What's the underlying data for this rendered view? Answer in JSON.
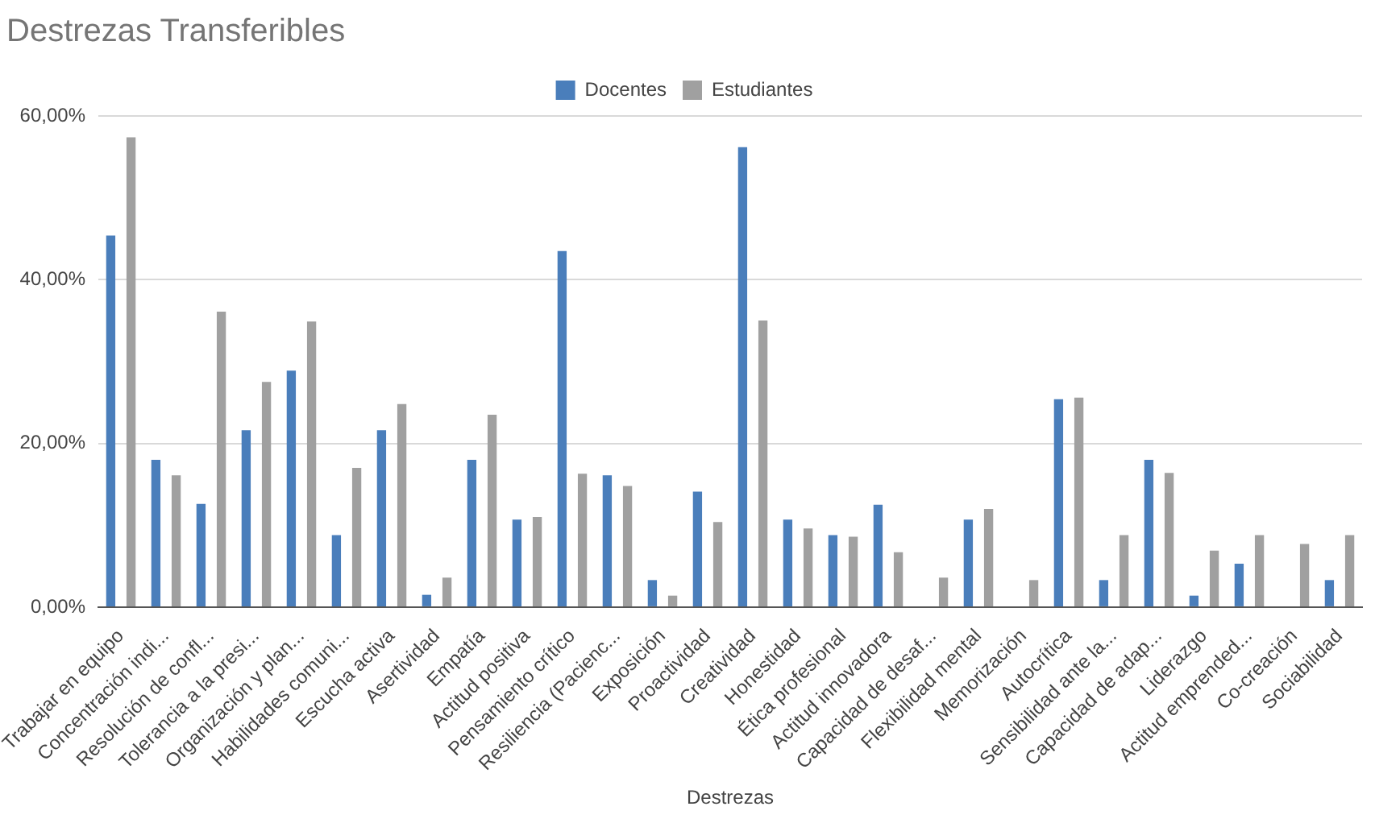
{
  "chart_data": {
    "type": "bar",
    "title": "Destrezas Transferibles",
    "xlabel": "Destrezas",
    "categories": [
      "Trabajar en equipo",
      "Concentración indi...",
      "Resolución de confl...",
      "Tolerancia a la presi...",
      "Organización y plan...",
      "Habilidades comuni...",
      "Escucha activa",
      "Asertividad",
      "Empatía",
      "Actitud positiva",
      "Pensamiento crítico",
      "Resiliencia (Pacienc...",
      "Exposición",
      "Proactividad",
      "Creatividad",
      "Honestidad",
      "Ética profesional",
      "Actitud innovadora",
      "Capacidad de desaf...",
      "Flexibilidad mental",
      "Memorización",
      "Autocrítica",
      "Sensibilidad ante la...",
      "Capacidad de adap...",
      "Liderazgo",
      "Actitud emprended...",
      "Co-creación",
      "Sociabilidad"
    ],
    "series": [
      {
        "name": "Docentes",
        "color": "#4a7ebb",
        "values": [
          45.4,
          18.0,
          12.6,
          21.6,
          28.9,
          8.8,
          21.6,
          1.5,
          18.0,
          10.7,
          43.5,
          16.1,
          3.3,
          14.1,
          56.2,
          10.7,
          8.8,
          12.5,
          0,
          10.7,
          0,
          25.4,
          3.3,
          18.0,
          1.4,
          5.3,
          0,
          3.3
        ]
      },
      {
        "name": "Estudiantes",
        "color": "#a0a0a0",
        "values": [
          57.4,
          16.1,
          36.1,
          27.5,
          34.9,
          17.0,
          24.8,
          3.6,
          23.5,
          11.0,
          16.3,
          14.8,
          1.4,
          10.4,
          35.0,
          9.6,
          8.6,
          6.7,
          3.6,
          12.0,
          3.3,
          25.6,
          8.8,
          16.4,
          6.9,
          8.8,
          7.7,
          8.8
        ]
      }
    ],
    "ylim": [
      0,
      60
    ],
    "yticks": [
      {
        "value": 0,
        "label": "0,00%"
      },
      {
        "value": 20,
        "label": "20,00%"
      },
      {
        "value": 40,
        "label": "40,00%"
      },
      {
        "value": 60,
        "label": "60,00%"
      }
    ],
    "grid": "y",
    "legend": "top"
  }
}
